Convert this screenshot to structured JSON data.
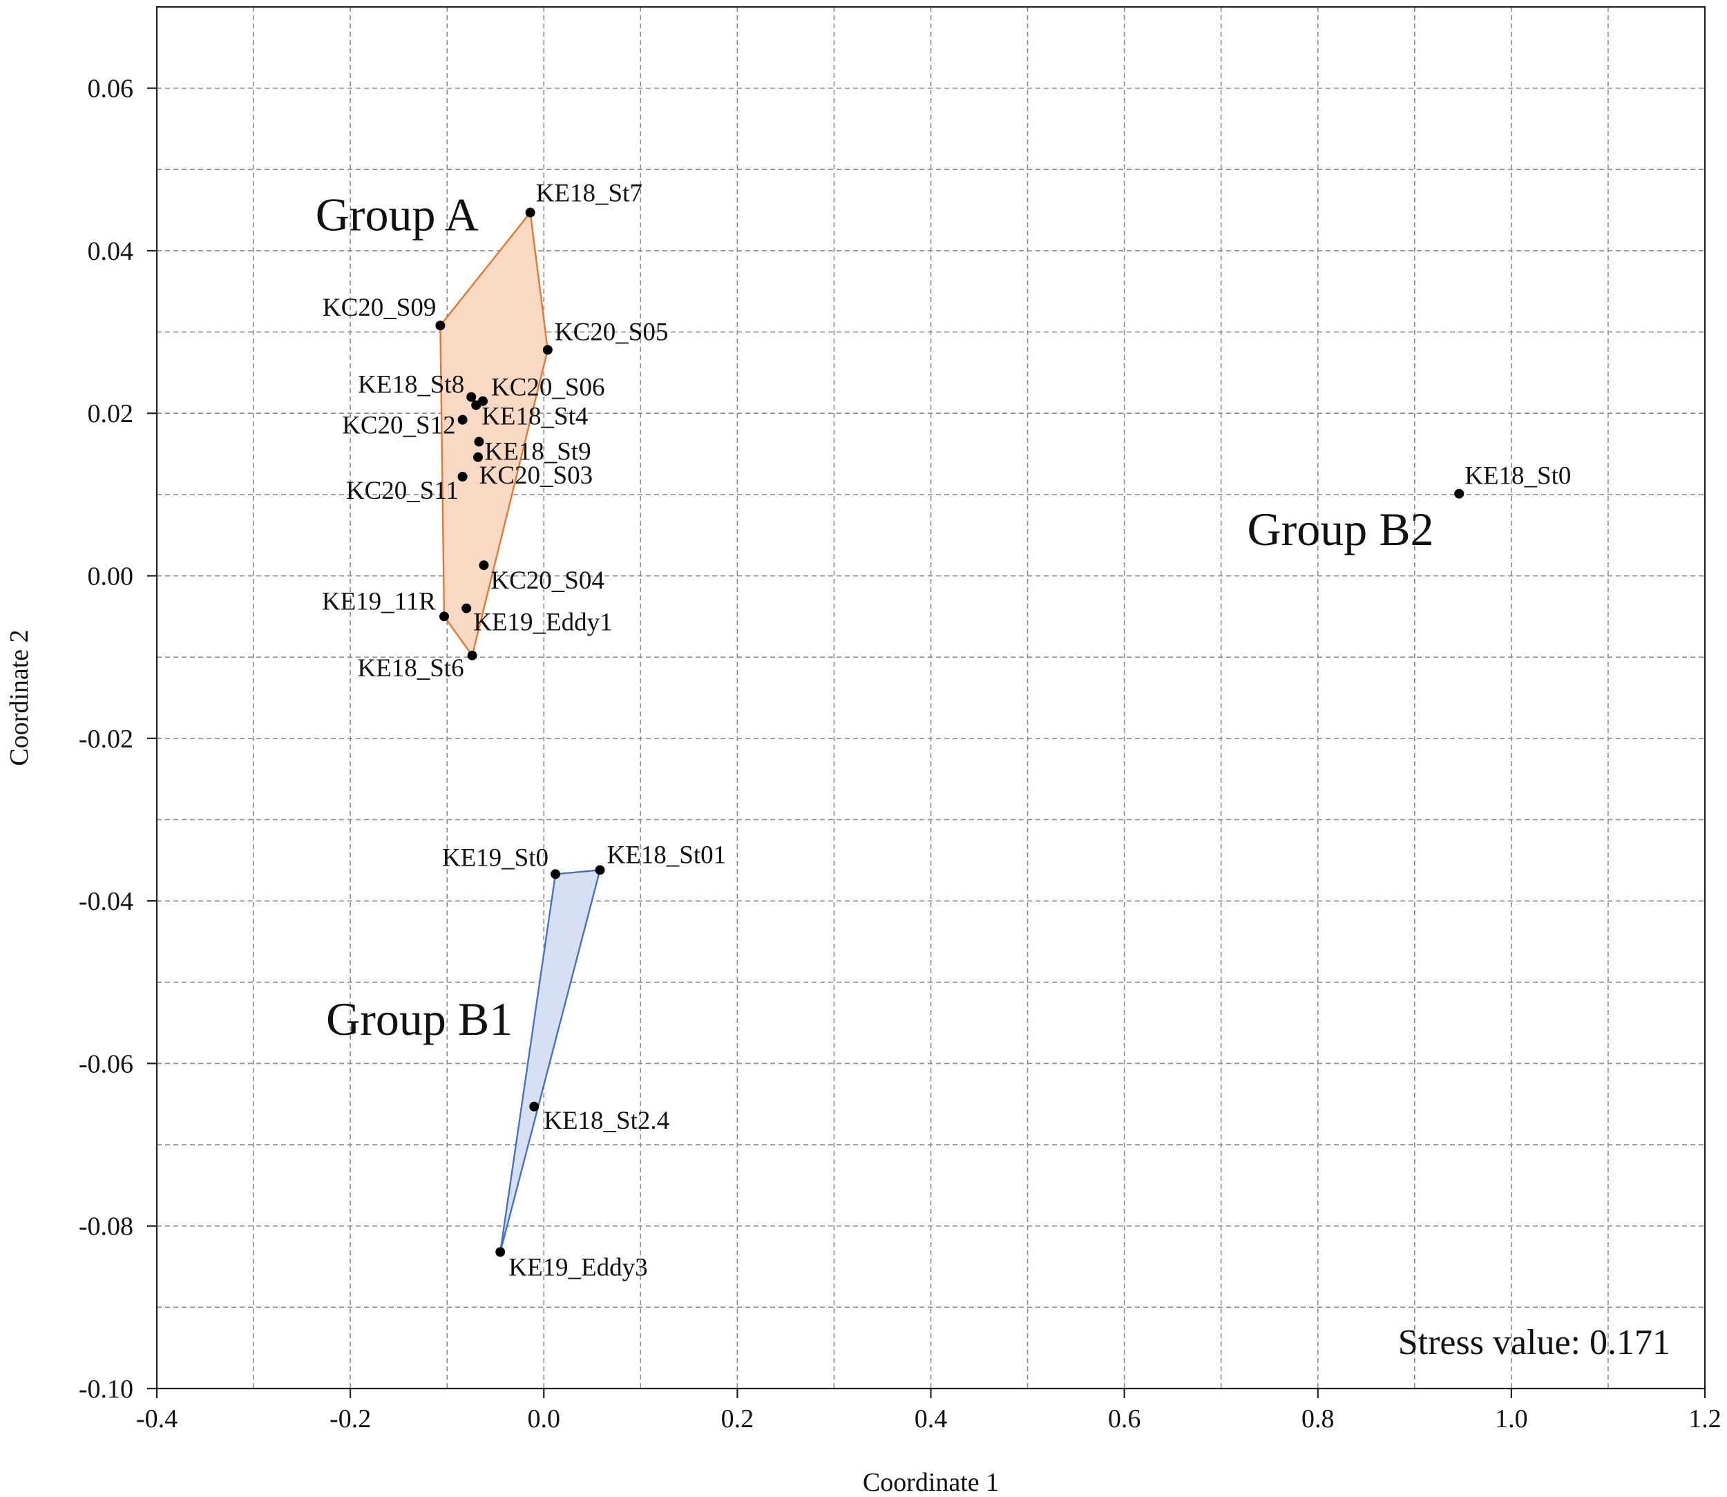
{
  "chart_data": {
    "type": "scatter",
    "xlabel": "Coordinate 1",
    "ylabel": "Coordinate 2",
    "xlim": [
      -0.4,
      1.2
    ],
    "ylim": [
      -0.1,
      0.07
    ],
    "grid": true,
    "x_ticks": [
      -0.4,
      -0.2,
      0.0,
      0.2,
      0.4,
      0.6,
      0.8,
      1.0,
      1.2
    ],
    "x_tick_labels": [
      "-0.4",
      "-0.2",
      "0.0",
      "0.2",
      "0.4",
      "0.6",
      "0.8",
      "1.0",
      "1.2"
    ],
    "y_ticks": [
      -0.1,
      -0.08,
      -0.06,
      -0.04,
      -0.02,
      0.0,
      0.02,
      0.04,
      0.06
    ],
    "y_tick_labels": [
      "-0.10",
      "-0.08",
      "-0.06",
      "-0.04",
      "-0.02",
      "0.00",
      "0.02",
      "0.04",
      "0.06"
    ],
    "minor_x_grid": [
      -0.3,
      -0.1,
      0.1,
      0.3,
      0.5,
      0.7,
      0.9,
      1.1
    ],
    "minor_y_grid": [
      -0.09,
      -0.07,
      -0.05,
      -0.03,
      -0.01,
      0.01,
      0.03,
      0.05
    ],
    "points": [
      {
        "label": "KE18_St7",
        "x": -0.014,
        "y": 0.0447,
        "anchor": "start",
        "dx": 8,
        "dy": -16
      },
      {
        "label": "KC20_S09",
        "x": -0.107,
        "y": 0.0308,
        "anchor": "end",
        "dx": -6,
        "dy": -14
      },
      {
        "label": "KC20_S05",
        "x": 0.004,
        "y": 0.0278,
        "anchor": "start",
        "dx": 10,
        "dy": -14
      },
      {
        "label": "KE18_St8",
        "x": -0.075,
        "y": 0.022,
        "anchor": "end",
        "dx": -10,
        "dy": -6
      },
      {
        "label": "KC20_S06",
        "x": -0.063,
        "y": 0.0215,
        "anchor": "start",
        "dx": 12,
        "dy": -8
      },
      {
        "label": "KE18_St4",
        "x": -0.07,
        "y": 0.021,
        "anchor": "start",
        "dx": 8,
        "dy": 28
      },
      {
        "label": "KC20_S12",
        "x": -0.084,
        "y": 0.0192,
        "anchor": "end",
        "dx": -10,
        "dy": 20
      },
      {
        "label": "KE18_St9",
        "x": -0.067,
        "y": 0.0165,
        "anchor": "start",
        "dx": 8,
        "dy": 26
      },
      {
        "label": "KC20_S11",
        "x": -0.068,
        "y": 0.0146,
        "anchor": "end",
        "dx": -28,
        "dy": 60
      },
      {
        "label": "KC20_S03",
        "x": -0.084,
        "y": 0.0122,
        "anchor": "start",
        "dx": 24,
        "dy": 10
      },
      {
        "label": "KC20_S04",
        "x": -0.062,
        "y": 0.0013,
        "anchor": "start",
        "dx": 10,
        "dy": 34
      },
      {
        "label": "KE19_11R",
        "x": -0.103,
        "y": -0.005,
        "anchor": "end",
        "dx": -12,
        "dy": -10
      },
      {
        "label": "KE19_Eddy1",
        "x": -0.08,
        "y": -0.004,
        "anchor": "start",
        "dx": 10,
        "dy": 32
      },
      {
        "label": "KE18_St6",
        "x": -0.074,
        "y": -0.0098,
        "anchor": "end",
        "dx": -12,
        "dy": 30
      },
      {
        "label": "KE19_St0",
        "x": 0.012,
        "y": -0.0367,
        "anchor": "end",
        "dx": -10,
        "dy": -12
      },
      {
        "label": "KE18_St01",
        "x": 0.058,
        "y": -0.0362,
        "anchor": "start",
        "dx": 10,
        "dy": -10
      },
      {
        "label": "KE18_St2.4",
        "x": -0.01,
        "y": -0.0653,
        "anchor": "start",
        "dx": 14,
        "dy": 32
      },
      {
        "label": "KE19_Eddy3",
        "x": -0.045,
        "y": -0.0832,
        "anchor": "start",
        "dx": 12,
        "dy": 34
      },
      {
        "label": "KE18_St0",
        "x": 0.946,
        "y": 0.0101,
        "anchor": "start",
        "dx": 8,
        "dy": -14
      }
    ],
    "groups": [
      {
        "name": "Group A",
        "hull": [
          "KE18_St7",
          "KC20_S05",
          "KE18_St6",
          "KE19_11R",
          "KC20_S09"
        ],
        "fill": "#f8d9c4",
        "stroke": "#e8762c",
        "label_x": -0.236,
        "label_y": 0.0425
      },
      {
        "name": "Group B1",
        "hull": [
          "KE19_St0",
          "KE18_St01",
          "KE19_Eddy3"
        ],
        "fill": "#d6e0f2",
        "stroke": "#4472c4",
        "label_x": -0.225,
        "label_y": -0.0565
      },
      {
        "name": "Group B2",
        "hull": [],
        "fill": "none",
        "stroke": "none",
        "label_x": 0.727,
        "label_y": 0.0038
      }
    ],
    "annotation": "Stress value: 0.171"
  }
}
